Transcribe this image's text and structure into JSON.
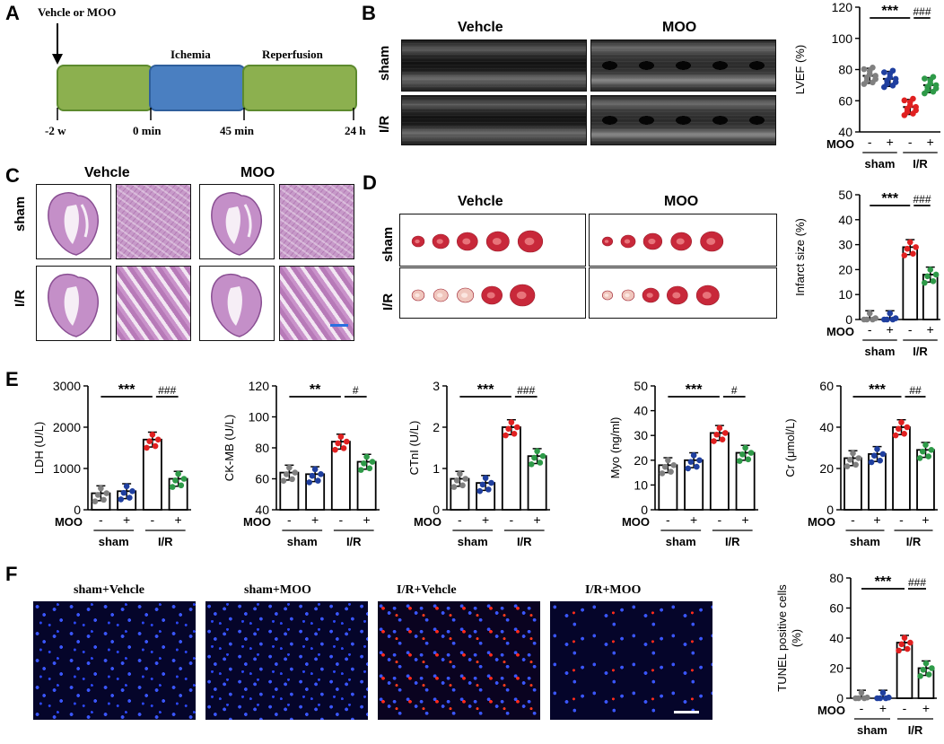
{
  "panel_letters": [
    "A",
    "B",
    "C",
    "D",
    "E",
    "F"
  ],
  "timeline": {
    "arrow_label": "Vehcle or MOO",
    "phase_labels": [
      "Ichemia",
      "Reperfusion"
    ],
    "tick_labels": [
      "-2 w",
      "0 min",
      "45 min",
      "24 h"
    ],
    "colors": {
      "pre": "#8cb04f",
      "ischemia": "#4a7fc1",
      "reperfusion": "#8cb04f"
    }
  },
  "echo": {
    "col_labels": [
      "Vehcle",
      "MOO"
    ],
    "row_labels": [
      "sham",
      "I/R"
    ]
  },
  "he": {
    "col_labels": [
      "Vehcle",
      "MOO"
    ],
    "row_labels": [
      "sham",
      "I/R"
    ]
  },
  "ttc": {
    "col_labels": [
      "Vehcle",
      "MOO"
    ],
    "row_labels": [
      "sham",
      "I/R"
    ]
  },
  "tunel": {
    "labels": [
      "sham+Vehcle",
      "sham+MOO",
      "I/R+Vehcle",
      "I/R+MOO"
    ]
  },
  "colors": {
    "sham_vehicle": "#808080",
    "sham_moo": "#1f3f9f",
    "ir_vehicle": "#e02020",
    "ir_moo": "#2e9a48"
  },
  "group_axis": {
    "moo_label": "MOO",
    "moo_ticks": [
      "-",
      "+",
      "-",
      "+"
    ],
    "groups": [
      "sham",
      "I/R"
    ]
  },
  "chart_data": [
    {
      "id": "lvef",
      "type": "scatter",
      "ylabel": "LVEF (%)",
      "ylim": [
        40,
        120
      ],
      "yticks": [
        40,
        60,
        80,
        100,
        120
      ],
      "groups": [
        "sham -",
        "sham +",
        "I/R -",
        "I/R +"
      ],
      "means": [
        76,
        74,
        56,
        70
      ],
      "sig": [
        {
          "text": "***"
        },
        {
          "text": "###"
        }
      ]
    },
    {
      "id": "infarct",
      "type": "bar",
      "ylabel": "Infarct size (%)",
      "ylim": [
        0,
        50
      ],
      "yticks": [
        0,
        10,
        20,
        30,
        40,
        50
      ],
      "groups": [
        "sham -",
        "sham +",
        "I/R -",
        "I/R +"
      ],
      "means": [
        0.5,
        0.5,
        29,
        18
      ],
      "sig": [
        {
          "text": "***"
        },
        {
          "text": "###"
        }
      ]
    },
    {
      "id": "ldh",
      "type": "bar",
      "ylabel": "LDH (U/L)",
      "ylim": [
        0,
        3000
      ],
      "yticks": [
        0,
        1000,
        2000,
        3000
      ],
      "groups": [
        "sham -",
        "sham +",
        "I/R -",
        "I/R +"
      ],
      "means": [
        400,
        450,
        1700,
        750
      ],
      "sig": [
        {
          "text": "***"
        },
        {
          "text": "###"
        }
      ]
    },
    {
      "id": "ckmb",
      "type": "bar",
      "ylabel": "CK-MB (U/L)",
      "ylim": [
        40,
        120
      ],
      "yticks": [
        40,
        60,
        80,
        100,
        120
      ],
      "groups": [
        "sham -",
        "sham +",
        "I/R -",
        "I/R +"
      ],
      "means": [
        64,
        63,
        84,
        71
      ],
      "sig": [
        {
          "text": "**"
        },
        {
          "text": "#"
        }
      ]
    },
    {
      "id": "ctni",
      "type": "bar",
      "ylabel": "CTnI (U/L)",
      "ylim": [
        0,
        3
      ],
      "yticks": [
        0,
        1,
        2,
        3
      ],
      "groups": [
        "sham -",
        "sham +",
        "I/R -",
        "I/R +"
      ],
      "means": [
        0.75,
        0.65,
        2.0,
        1.3
      ],
      "sig": [
        {
          "text": "***"
        },
        {
          "text": "###"
        }
      ]
    },
    {
      "id": "myo",
      "type": "bar",
      "ylabel": "Myo (ng/ml)",
      "ylim": [
        0,
        50
      ],
      "yticks": [
        0,
        10,
        20,
        30,
        40,
        50
      ],
      "groups": [
        "sham -",
        "sham +",
        "I/R -",
        "I/R +"
      ],
      "means": [
        18,
        20,
        31,
        23
      ],
      "sig": [
        {
          "text": "***"
        },
        {
          "text": "#"
        }
      ]
    },
    {
      "id": "cr",
      "type": "bar",
      "ylabel": "Cr (μmol/L)",
      "ylim": [
        0,
        60
      ],
      "yticks": [
        0,
        20,
        40,
        60
      ],
      "groups": [
        "sham -",
        "sham +",
        "I/R -",
        "I/R +"
      ],
      "means": [
        25,
        27,
        40,
        29
      ],
      "sig": [
        {
          "text": "***"
        },
        {
          "text": "##"
        }
      ]
    },
    {
      "id": "tunel",
      "type": "bar",
      "ylabel": "TUNEL positive cells (%)",
      "ylim": [
        0,
        80
      ],
      "yticks": [
        0,
        20,
        40,
        60,
        80
      ],
      "groups": [
        "sham -",
        "sham +",
        "I/R -",
        "I/R +"
      ],
      "means": [
        0.5,
        0.5,
        37,
        20
      ],
      "sig": [
        {
          "text": "***"
        },
        {
          "text": "###"
        }
      ]
    }
  ]
}
